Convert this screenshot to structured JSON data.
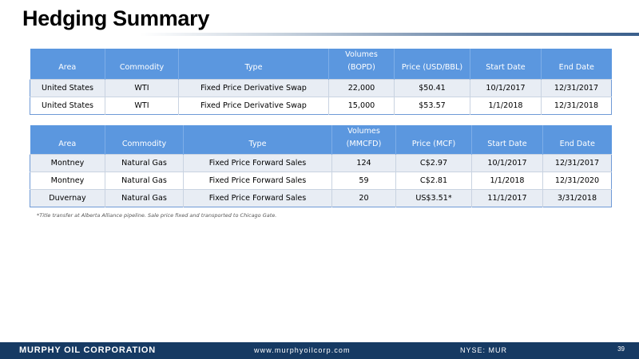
{
  "slide": {
    "title": "Hedging Summary",
    "page_number": "39"
  },
  "oil_table": {
    "headers": {
      "area": "Area",
      "commodity": "Commodity",
      "type": "Type",
      "volumes_line1": "Volumes",
      "volumes_line2": "(BOPD)",
      "price": "Price (USD/BBL)",
      "start_date": "Start Date",
      "end_date": "End Date"
    },
    "rows": [
      {
        "area": "United States",
        "commodity": "WTI",
        "type": "Fixed Price Derivative Swap",
        "volumes": "22,000",
        "price": "$50.41",
        "start_date": "10/1/2017",
        "end_date": "12/31/2017"
      },
      {
        "area": "United States",
        "commodity": "WTI",
        "type": "Fixed Price Derivative Swap",
        "volumes": "15,000",
        "price": "$53.57",
        "start_date": "1/1/2018",
        "end_date": "12/31/2018"
      }
    ]
  },
  "gas_table": {
    "headers": {
      "area": "Area",
      "commodity": "Commodity",
      "type": "Type",
      "volumes_line1": "Volumes",
      "volumes_line2": "(MMCFD)",
      "price": "Price (MCF)",
      "start_date": "Start Date",
      "end_date": "End Date"
    },
    "rows": [
      {
        "area": "Montney",
        "commodity": "Natural Gas",
        "type": "Fixed Price Forward Sales",
        "volumes": "124",
        "price": "C$2.97",
        "start_date": "10/1/2017",
        "end_date": "12/31/2017"
      },
      {
        "area": "Montney",
        "commodity": "Natural Gas",
        "type": "Fixed Price Forward Sales",
        "volumes": "59",
        "price": "C$2.81",
        "start_date": "1/1/2018",
        "end_date": "12/31/2020"
      },
      {
        "area": "Duvernay",
        "commodity": "Natural Gas",
        "type": "Fixed Price Forward Sales",
        "volumes": "20",
        "price": "US$3.51*",
        "start_date": "11/1/2017",
        "end_date": "3/31/2018"
      }
    ]
  },
  "footnote": "*Title transfer at Alberta Alliance pipeline.  Sale price fixed and transported to Chicago Gate.",
  "footer": {
    "company": "MURPHY OIL CORPORATION",
    "url": "www.murphyoilcorp.com",
    "ticker": "NYSE: MUR"
  },
  "colors": {
    "header_blue": "#5b97df",
    "footer_navy": "#163a63",
    "row_shade": "#e8edf4"
  }
}
